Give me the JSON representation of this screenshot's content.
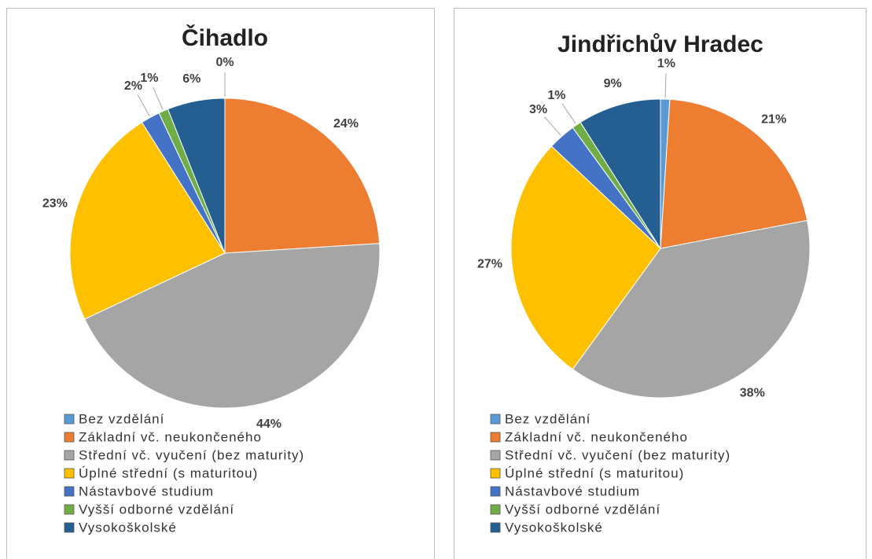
{
  "chart_data": [
    {
      "type": "pie",
      "title": "Čihadlo",
      "categories": [
        "Bez vzdělání",
        "Základní vč. neukončeného",
        "Střední vč. vyučení (bez maturity)",
        "Úplné střední (s maturitou)",
        "Nástavbové studium",
        "Vyšší odborné vzdělání",
        "Vysokoškolské"
      ],
      "values": [
        0,
        24,
        44,
        23,
        2,
        1,
        6
      ],
      "value_labels": [
        "0%",
        "24%",
        "44%",
        "23%",
        "2%",
        "1%",
        "6%"
      ],
      "colors": [
        "#5b9bd5",
        "#ed7d31",
        "#a5a5a5",
        "#ffc000",
        "#4472c4",
        "#70ad47",
        "#255e91"
      ]
    },
    {
      "type": "pie",
      "title": "Jindřichův Hradec",
      "categories": [
        "Bez vzdělání",
        "Základní vč. neukončeného",
        "Střední vč. vyučení (bez maturity)",
        "Úplné střední (s maturitou)",
        "Nástavbové studium",
        "Vyšší odborné vzdělání",
        "Vysokoškolské"
      ],
      "values": [
        1,
        21,
        38,
        27,
        3,
        1,
        9
      ],
      "value_labels": [
        "1%",
        "21%",
        "38%",
        "27%",
        "3%",
        "1%",
        "9%"
      ],
      "colors": [
        "#5b9bd5",
        "#ed7d31",
        "#a5a5a5",
        "#ffc000",
        "#4472c4",
        "#70ad47",
        "#255e91"
      ]
    }
  ]
}
